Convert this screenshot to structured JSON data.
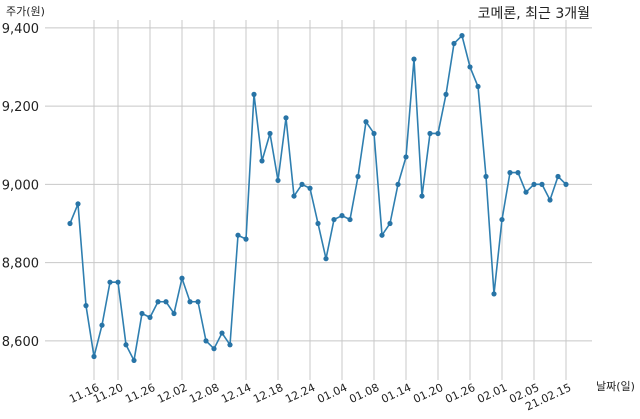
{
  "chart_data": {
    "type": "line",
    "title": "코메론, 최근 3개월",
    "ylabel": "주가(원)",
    "xlabel": "날짜(일)",
    "ylim": [
      8500,
      9420
    ],
    "yticks": [
      8600,
      8800,
      9000,
      9200,
      9400
    ],
    "ytick_labels": [
      "8,600",
      "8,800",
      "9,000",
      "9,200",
      "9,400"
    ],
    "grid": true,
    "xtick_labels": [
      "11.16",
      "11.20",
      "11.26",
      "12.02",
      "12.08",
      "12.14",
      "12.18",
      "12.24",
      "01.04",
      "01.08",
      "01.14",
      "01.20",
      "01.26",
      "02.01",
      "02.05",
      "21.02.15"
    ],
    "xtick_index": [
      3,
      6,
      10,
      14,
      18,
      22,
      26,
      30,
      34,
      38,
      42,
      46,
      50,
      54,
      58,
      62
    ],
    "series": [
      {
        "color": "#2f7fb0",
        "values": [
          8900,
          8950,
          8690,
          8560,
          8640,
          8750,
          8750,
          8590,
          8550,
          8670,
          8660,
          8700,
          8700,
          8670,
          8760,
          8700,
          8700,
          8600,
          8580,
          8620,
          8590,
          8870,
          8860,
          9230,
          9060,
          9130,
          9010,
          9170,
          8970,
          9000,
          8990,
          8900,
          8810,
          8910,
          8920,
          8910,
          9020,
          9160,
          9130,
          8870,
          8900,
          9000,
          9070,
          9320,
          8970,
          9130,
          9130,
          9230,
          9360,
          9380,
          9300,
          9250,
          9020,
          8720,
          8910,
          9030,
          9030,
          8980,
          9000,
          9000,
          8960,
          9020,
          9000
        ]
      }
    ]
  }
}
